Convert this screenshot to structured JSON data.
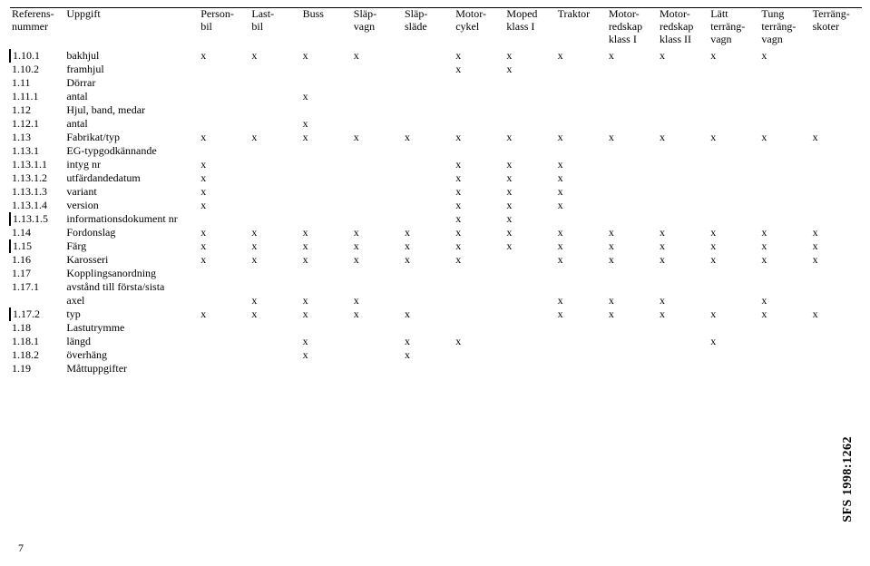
{
  "sideLabel": "SFS 1998:1262",
  "pageNumber": "7",
  "columns": [
    {
      "key": "ref",
      "lines": [
        "Referens-",
        "nummer"
      ]
    },
    {
      "key": "upp",
      "lines": [
        "Uppgift"
      ]
    },
    {
      "key": "c1",
      "lines": [
        "Person-",
        "bil"
      ]
    },
    {
      "key": "c2",
      "lines": [
        "Last-",
        "bil"
      ]
    },
    {
      "key": "c3",
      "lines": [
        "Buss"
      ]
    },
    {
      "key": "c4",
      "lines": [
        "Släp-",
        "vagn"
      ]
    },
    {
      "key": "c5",
      "lines": [
        "Släp-",
        "släde"
      ]
    },
    {
      "key": "c6",
      "lines": [
        "Motor-",
        "cykel"
      ]
    },
    {
      "key": "c7",
      "lines": [
        "Moped",
        "klass I"
      ]
    },
    {
      "key": "c8",
      "lines": [
        "Traktor"
      ]
    },
    {
      "key": "c9",
      "lines": [
        "Motor-",
        "redskap",
        "klass I"
      ]
    },
    {
      "key": "c10",
      "lines": [
        "Motor-",
        "redskap",
        "klass II"
      ]
    },
    {
      "key": "c11",
      "lines": [
        "Lätt",
        "terräng-",
        "vagn"
      ]
    },
    {
      "key": "c12",
      "lines": [
        "Tung",
        "terräng-",
        "vagn"
      ]
    },
    {
      "key": "c13",
      "lines": [
        "Terräng-",
        "skoter"
      ]
    }
  ],
  "rows": [
    {
      "bar": true,
      "ref": "1.10.1",
      "upp": "bakhjul",
      "marks": [
        "x",
        "x",
        "x",
        "x",
        "",
        "x",
        "x",
        "x",
        "x",
        "x",
        "x",
        "x",
        ""
      ]
    },
    {
      "bar": false,
      "ref": "1.10.2",
      "upp": "framhjul",
      "marks": [
        "",
        "",
        "",
        "",
        "",
        "x",
        "x",
        "",
        "",
        "",
        "",
        "",
        ""
      ]
    },
    {
      "bar": false,
      "ref": "1.11",
      "upp": "Dörrar",
      "marks": [
        "",
        "",
        "",
        "",
        "",
        "",
        "",
        "",
        "",
        "",
        "",
        "",
        ""
      ]
    },
    {
      "bar": false,
      "ref": "1.11.1",
      "upp": "antal",
      "marks": [
        "",
        "",
        "x",
        "",
        "",
        "",
        "",
        "",
        "",
        "",
        "",
        "",
        ""
      ]
    },
    {
      "bar": false,
      "ref": "1.12",
      "upp": "Hjul, band, medar",
      "marks": [
        "",
        "",
        "",
        "",
        "",
        "",
        "",
        "",
        "",
        "",
        "",
        "",
        ""
      ]
    },
    {
      "bar": false,
      "ref": "1.12.1",
      "upp": "antal",
      "marks": [
        "",
        "",
        "x",
        "",
        "",
        "",
        "",
        "",
        "",
        "",
        "",
        "",
        ""
      ]
    },
    {
      "bar": false,
      "ref": "1.13",
      "upp": "Fabrikat/typ",
      "marks": [
        "x",
        "x",
        "x",
        "x",
        "x",
        "x",
        "x",
        "x",
        "x",
        "x",
        "x",
        "x",
        "x"
      ]
    },
    {
      "bar": false,
      "ref": "1.13.1",
      "upp": "EG-typgodkännande",
      "marks": [
        "",
        "",
        "",
        "",
        "",
        "",
        "",
        "",
        "",
        "",
        "",
        "",
        ""
      ]
    },
    {
      "bar": false,
      "ref": "1.13.1.1",
      "upp": "intyg nr",
      "marks": [
        "x",
        "",
        "",
        "",
        "",
        "x",
        "x",
        "x",
        "",
        "",
        "",
        "",
        ""
      ]
    },
    {
      "bar": false,
      "ref": "1.13.1.2",
      "upp": "utfärdandedatum",
      "marks": [
        "x",
        "",
        "",
        "",
        "",
        "x",
        "x",
        "x",
        "",
        "",
        "",
        "",
        ""
      ]
    },
    {
      "bar": false,
      "ref": "1.13.1.3",
      "upp": "variant",
      "marks": [
        "x",
        "",
        "",
        "",
        "",
        "x",
        "x",
        "x",
        "",
        "",
        "",
        "",
        ""
      ]
    },
    {
      "bar": false,
      "ref": "1.13.1.4",
      "upp": "version",
      "marks": [
        "x",
        "",
        "",
        "",
        "",
        "x",
        "x",
        "x",
        "",
        "",
        "",
        "",
        ""
      ]
    },
    {
      "bar": true,
      "ref": "1.13.1.5",
      "upp": "informationsdokument nr",
      "marks": [
        "",
        "",
        "",
        "",
        "",
        "x",
        "x",
        "",
        "",
        "",
        "",
        "",
        ""
      ]
    },
    {
      "bar": false,
      "ref": "1.14",
      "upp": "Fordonslag",
      "marks": [
        "x",
        "x",
        "x",
        "x",
        "x",
        "x",
        "x",
        "x",
        "x",
        "x",
        "x",
        "x",
        "x"
      ]
    },
    {
      "bar": true,
      "ref": "1.15",
      "upp": "Färg",
      "marks": [
        "x",
        "x",
        "x",
        "x",
        "x",
        "x",
        "x",
        "x",
        "x",
        "x",
        "x",
        "x",
        "x"
      ]
    },
    {
      "bar": false,
      "ref": "1.16",
      "upp": "Karosseri",
      "marks": [
        "x",
        "x",
        "x",
        "x",
        "x",
        "x",
        "",
        "x",
        "x",
        "x",
        "x",
        "x",
        "x"
      ]
    },
    {
      "bar": false,
      "ref": "1.17",
      "upp": "Kopplingsanordning",
      "marks": [
        "",
        "",
        "",
        "",
        "",
        "",
        "",
        "",
        "",
        "",
        "",
        "",
        ""
      ]
    },
    {
      "bar": false,
      "ref": "1.17.1",
      "upp": "avstånd till första/sista",
      "marks": [
        "",
        "",
        "",
        "",
        "",
        "",
        "",
        "",
        "",
        "",
        "",
        "",
        ""
      ]
    },
    {
      "bar": false,
      "ref": "",
      "upp": "axel",
      "marks": [
        "",
        "x",
        "x",
        "x",
        "",
        "",
        "",
        "x",
        "x",
        "x",
        "",
        "x",
        ""
      ]
    },
    {
      "bar": true,
      "ref": "1.17.2",
      "upp": "typ",
      "marks": [
        "x",
        "x",
        "x",
        "x",
        "x",
        "",
        "",
        "x",
        "x",
        "x",
        "x",
        "x",
        "x"
      ]
    },
    {
      "bar": false,
      "ref": "1.18",
      "upp": "Lastutrymme",
      "marks": [
        "",
        "",
        "",
        "",
        "",
        "",
        "",
        "",
        "",
        "",
        "",
        "",
        ""
      ]
    },
    {
      "bar": false,
      "ref": "1.18.1",
      "upp": "längd",
      "marks": [
        "",
        "",
        "x",
        "",
        "x",
        "x",
        "",
        "",
        "",
        "",
        "x",
        "",
        ""
      ]
    },
    {
      "bar": false,
      "ref": "1.18.2",
      "upp": "överhäng",
      "marks": [
        "",
        "",
        "x",
        "",
        "x",
        "",
        "",
        "",
        "",
        "",
        "",
        "",
        ""
      ]
    },
    {
      "bar": false,
      "ref": "1.19",
      "upp": "Måttuppgifter",
      "marks": [
        "",
        "",
        "",
        "",
        "",
        "",
        "",
        "",
        "",
        "",
        "",
        "",
        ""
      ]
    }
  ]
}
